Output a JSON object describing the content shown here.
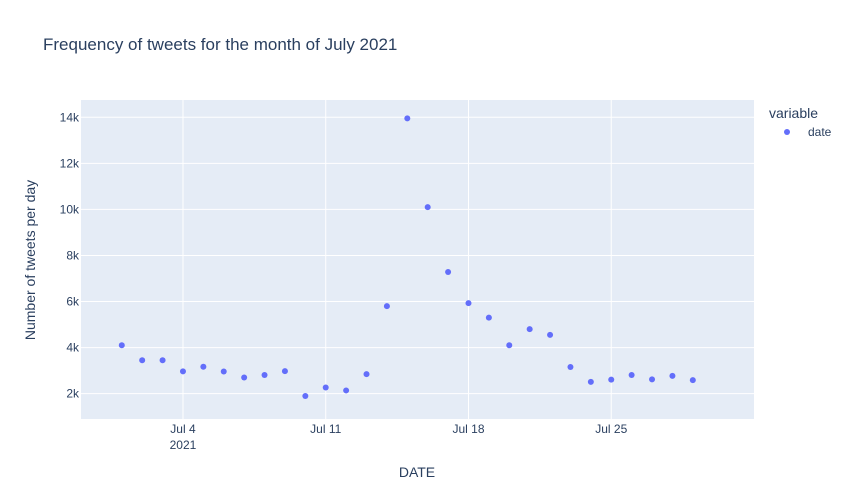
{
  "chart_data": {
    "type": "scatter",
    "title": "Frequency of tweets for the month of July 2021",
    "xlabel": "DATE",
    "ylabel": "Number of tweets per day",
    "x": [
      "2021-07-01",
      "2021-07-02",
      "2021-07-03",
      "2021-07-04",
      "2021-07-05",
      "2021-07-06",
      "2021-07-07",
      "2021-07-08",
      "2021-07-09",
      "2021-07-10",
      "2021-07-11",
      "2021-07-12",
      "2021-07-13",
      "2021-07-14",
      "2021-07-15",
      "2021-07-16",
      "2021-07-17",
      "2021-07-18",
      "2021-07-19",
      "2021-07-20",
      "2021-07-21",
      "2021-07-22",
      "2021-07-23",
      "2021-07-24",
      "2021-07-25",
      "2021-07-26",
      "2021-07-27",
      "2021-07-28",
      "2021-07-29"
    ],
    "series": [
      {
        "name": "date",
        "color": "#636efa",
        "values": [
          4100,
          3450,
          3450,
          2970,
          3170,
          2960,
          2700,
          2810,
          2980,
          1900,
          2270,
          2140,
          2850,
          5800,
          13950,
          10100,
          7280,
          5930,
          5300,
          4100,
          4800,
          4550,
          3160,
          2510,
          2610,
          2810,
          2620,
          2770,
          2590
        ]
      }
    ],
    "xlim": [
      "2021-06-29",
      "2021-08-01"
    ],
    "ylim": [
      900,
      14750
    ],
    "x_ticks": [
      {
        "date": "2021-07-04",
        "label": "Jul 4",
        "sublabel": "2021"
      },
      {
        "date": "2021-07-11",
        "label": "Jul 11",
        "sublabel": ""
      },
      {
        "date": "2021-07-18",
        "label": "Jul 18",
        "sublabel": ""
      },
      {
        "date": "2021-07-25",
        "label": "Jul 25",
        "sublabel": ""
      }
    ],
    "y_ticks": [
      {
        "value": 2000,
        "label": "2k"
      },
      {
        "value": 4000,
        "label": "4k"
      },
      {
        "value": 6000,
        "label": "6k"
      },
      {
        "value": 8000,
        "label": "8k"
      },
      {
        "value": 10000,
        "label": "10k"
      },
      {
        "value": 12000,
        "label": "12k"
      },
      {
        "value": 14000,
        "label": "14k"
      }
    ],
    "grid": true,
    "legend": {
      "title": "variable",
      "placement": "top-right"
    },
    "colors": {
      "plot_background": "#e5ecf6",
      "grid": "#ffffff",
      "text": "#2a3f5f"
    }
  }
}
